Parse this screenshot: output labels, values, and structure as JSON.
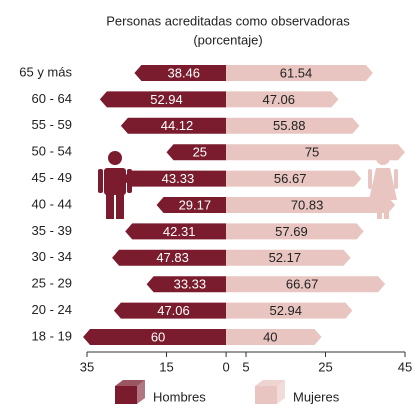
{
  "chart_data": {
    "type": "butterfly",
    "title": "Personas acreditadas como observadoras",
    "subtitle": "(porcentaje)",
    "categories": [
      "65 y más",
      "60 - 64",
      "55 - 59",
      "50 - 54",
      "45 - 49",
      "40 - 44",
      "35 - 39",
      "30 - 34",
      "25 - 29",
      "20 - 24",
      "18 - 19"
    ],
    "series": [
      {
        "name": "Hombres",
        "color": "#7b1c2e",
        "side": "left",
        "values": [
          38.46,
          52.94,
          44.12,
          25,
          43.33,
          29.17,
          42.31,
          47.83,
          33.33,
          47.06,
          60
        ]
      },
      {
        "name": "Mujeres",
        "color": "#e8c5c0",
        "side": "right",
        "values": [
          61.54,
          47.06,
          55.88,
          75,
          56.67,
          70.83,
          57.69,
          52.17,
          66.67,
          52.94,
          40
        ]
      }
    ],
    "xlim": [
      -35,
      45
    ],
    "xticks": [
      {
        "value": -35,
        "label": "35"
      },
      {
        "value": -15,
        "label": "15"
      },
      0,
      5,
      25,
      45
    ]
  }
}
